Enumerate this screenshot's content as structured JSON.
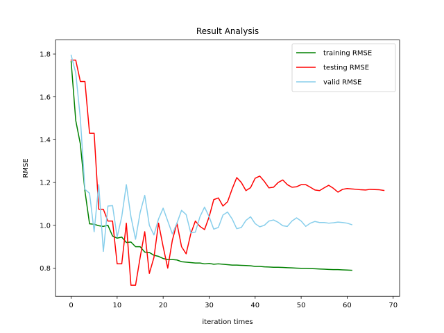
{
  "chart_data": {
    "type": "line",
    "title": "Result Analysis",
    "xlabel": "iteration times",
    "ylabel": "RMSE",
    "xlim": [
      -3.4,
      71.4
    ],
    "ylim": [
      0.668,
      1.866
    ],
    "xticks": [
      0,
      10,
      20,
      30,
      40,
      50,
      60,
      70
    ],
    "yticks": [
      0.8,
      1.0,
      1.2,
      1.4,
      1.6,
      1.8
    ],
    "ytick_labels": [
      "0.8",
      "1.0",
      "1.2",
      "1.4",
      "1.6",
      "1.8"
    ],
    "grid": false,
    "legend_position": "top-right",
    "series": [
      {
        "name": "training RMSE",
        "color": "#008000",
        "x": [
          0,
          1,
          2,
          3,
          4,
          5,
          6,
          7,
          8,
          9,
          10,
          11,
          12,
          13,
          14,
          15,
          16,
          17,
          18,
          19,
          20,
          21,
          22,
          23,
          24,
          25,
          26,
          27,
          28,
          29,
          30,
          31,
          32,
          33,
          34,
          35,
          36,
          37,
          38,
          39,
          40,
          41,
          42,
          43,
          44,
          45,
          46,
          47,
          48,
          49,
          50,
          51,
          52,
          53,
          54,
          55,
          56,
          57,
          58,
          59,
          60,
          61
        ],
        "y": [
          1.765,
          1.49,
          1.38,
          1.16,
          1.007,
          1.005,
          0.998,
          0.995,
          1.0,
          0.95,
          0.94,
          0.945,
          0.92,
          0.922,
          0.9,
          0.9,
          0.875,
          0.873,
          0.86,
          0.855,
          0.845,
          0.84,
          0.84,
          0.838,
          0.83,
          0.828,
          0.826,
          0.824,
          0.824,
          0.82,
          0.822,
          0.818,
          0.82,
          0.818,
          0.816,
          0.814,
          0.814,
          0.813,
          0.812,
          0.811,
          0.808,
          0.808,
          0.806,
          0.805,
          0.804,
          0.804,
          0.803,
          0.802,
          0.801,
          0.8,
          0.799,
          0.799,
          0.798,
          0.797,
          0.796,
          0.795,
          0.794,
          0.793,
          0.793,
          0.792,
          0.791,
          0.79
        ]
      },
      {
        "name": "testing RMSE",
        "color": "#ff0000",
        "x": [
          0,
          1,
          2,
          3,
          4,
          5,
          6,
          7,
          8,
          9,
          10,
          11,
          12,
          13,
          14,
          15,
          16,
          17,
          18,
          19,
          20,
          21,
          22,
          23,
          24,
          25,
          26,
          27,
          28,
          29,
          30,
          31,
          32,
          33,
          34,
          35,
          36,
          37,
          38,
          39,
          40,
          41,
          42,
          43,
          44,
          45,
          46,
          47,
          48,
          49,
          50,
          51,
          52,
          53,
          54,
          55,
          56,
          57,
          58,
          59,
          60,
          61,
          62,
          63,
          64,
          65,
          66,
          67,
          68
        ],
        "y": [
          1.772,
          1.772,
          1.672,
          1.672,
          1.43,
          1.43,
          1.075,
          1.075,
          1.02,
          1.02,
          0.82,
          0.82,
          1.01,
          0.72,
          0.72,
          0.85,
          0.97,
          0.775,
          0.85,
          1.01,
          0.9,
          0.8,
          0.93,
          1.01,
          0.9,
          0.867,
          0.96,
          1.02,
          0.995,
          0.98,
          1.04,
          1.12,
          1.128,
          1.09,
          1.11,
          1.17,
          1.223,
          1.2,
          1.162,
          1.176,
          1.22,
          1.23,
          1.205,
          1.175,
          1.178,
          1.2,
          1.212,
          1.19,
          1.178,
          1.18,
          1.19,
          1.19,
          1.178,
          1.165,
          1.162,
          1.175,
          1.187,
          1.173,
          1.155,
          1.168,
          1.172,
          1.17,
          1.168,
          1.166,
          1.165,
          1.168,
          1.167,
          1.166,
          1.163
        ]
      },
      {
        "name": "valid RMSE",
        "color": "#87ceeb",
        "x": [
          0,
          1,
          2,
          3,
          4,
          5,
          6,
          7,
          8,
          9,
          10,
          11,
          12,
          13,
          14,
          15,
          16,
          17,
          18,
          19,
          20,
          21,
          22,
          23,
          24,
          25,
          26,
          27,
          28,
          29,
          30,
          31,
          32,
          33,
          34,
          35,
          36,
          37,
          38,
          39,
          40,
          41,
          42,
          43,
          44,
          45,
          46,
          47,
          48,
          49,
          50,
          51,
          52,
          53,
          54,
          55,
          56,
          57,
          58,
          59,
          60,
          61
        ],
        "y": [
          1.795,
          1.712,
          1.5,
          1.168,
          1.15,
          0.97,
          1.19,
          0.878,
          1.09,
          1.092,
          0.945,
          1.04,
          1.19,
          1.04,
          0.935,
          1.06,
          1.14,
          1.0,
          0.955,
          1.03,
          1.08,
          1.02,
          0.96,
          1.01,
          1.07,
          1.05,
          0.965,
          0.968,
          1.04,
          1.085,
          1.04,
          0.982,
          0.99,
          1.048,
          1.062,
          1.03,
          0.984,
          0.99,
          1.023,
          1.04,
          1.008,
          0.993,
          1.0,
          1.02,
          1.025,
          1.014,
          0.998,
          0.995,
          1.02,
          1.035,
          1.02,
          0.995,
          1.01,
          1.018,
          1.013,
          1.013,
          1.01,
          1.012,
          1.015,
          1.013,
          1.01,
          1.003
        ]
      }
    ]
  }
}
